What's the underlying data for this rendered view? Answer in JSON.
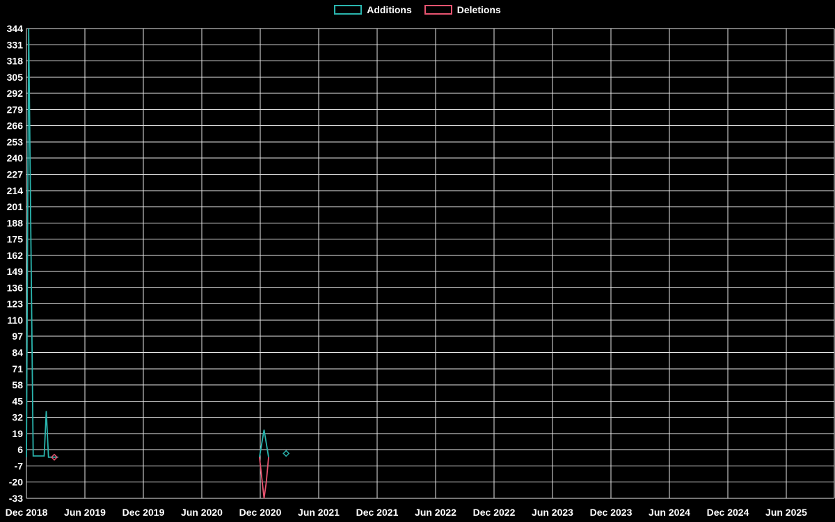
{
  "chart_data": {
    "type": "line",
    "title": "",
    "xlabel": "",
    "ylabel": "",
    "legend_position": "top-center",
    "background_color": "#000000",
    "grid": true,
    "grid_color": "#e8e8e8",
    "text_color": "#ffffff",
    "ylim": [
      -33,
      344
    ],
    "y_tick_step": 13,
    "y_tick_labels": [
      344,
      331,
      318,
      305,
      292,
      279,
      266,
      253,
      240,
      227,
      214,
      201,
      188,
      175,
      162,
      149,
      136,
      123,
      110,
      97,
      84,
      71,
      58,
      45,
      32,
      19,
      6,
      -7,
      -20,
      -33
    ],
    "x_tick_labels": [
      "Dec 2018",
      "Jun 2019",
      "Dec 2019",
      "Jun 2020",
      "Dec 2020",
      "Jun 2021",
      "Dec 2021",
      "Jun 2022",
      "Dec 2022",
      "Jun 2023",
      "Dec 2023",
      "Jun 2024",
      "Dec 2024",
      "Jun 2025"
    ],
    "x_axis_start": "2018-12-01",
    "x_axis_end": "2025-11-01",
    "series": [
      {
        "name": "Additions",
        "color": "#2ab5ae",
        "style": "line",
        "segments": [
          [
            [
              "2018-12-01",
              0
            ],
            [
              "2018-12-08",
              344
            ],
            [
              "2018-12-22",
              1
            ],
            [
              "2019-01-26",
              1
            ],
            [
              "2019-02-02",
              37
            ],
            [
              "2019-02-09",
              0
            ],
            [
              "2019-03-09",
              0
            ]
          ],
          [
            [
              "2020-11-29",
              0
            ],
            [
              "2020-12-13",
              22
            ],
            [
              "2020-12-27",
              0
            ]
          ]
        ],
        "isolated_points": [
          [
            "2021-02-21",
            3
          ]
        ]
      },
      {
        "name": "Deletions",
        "color": "#e85470",
        "style": "line",
        "segments": [
          [
            [
              "2020-11-29",
              0
            ],
            [
              "2020-12-13",
              -33
            ],
            [
              "2020-12-20",
              -20
            ],
            [
              "2020-12-27",
              0
            ]
          ]
        ],
        "isolated_points": [
          [
            "2019-02-27",
            0
          ]
        ]
      }
    ]
  }
}
